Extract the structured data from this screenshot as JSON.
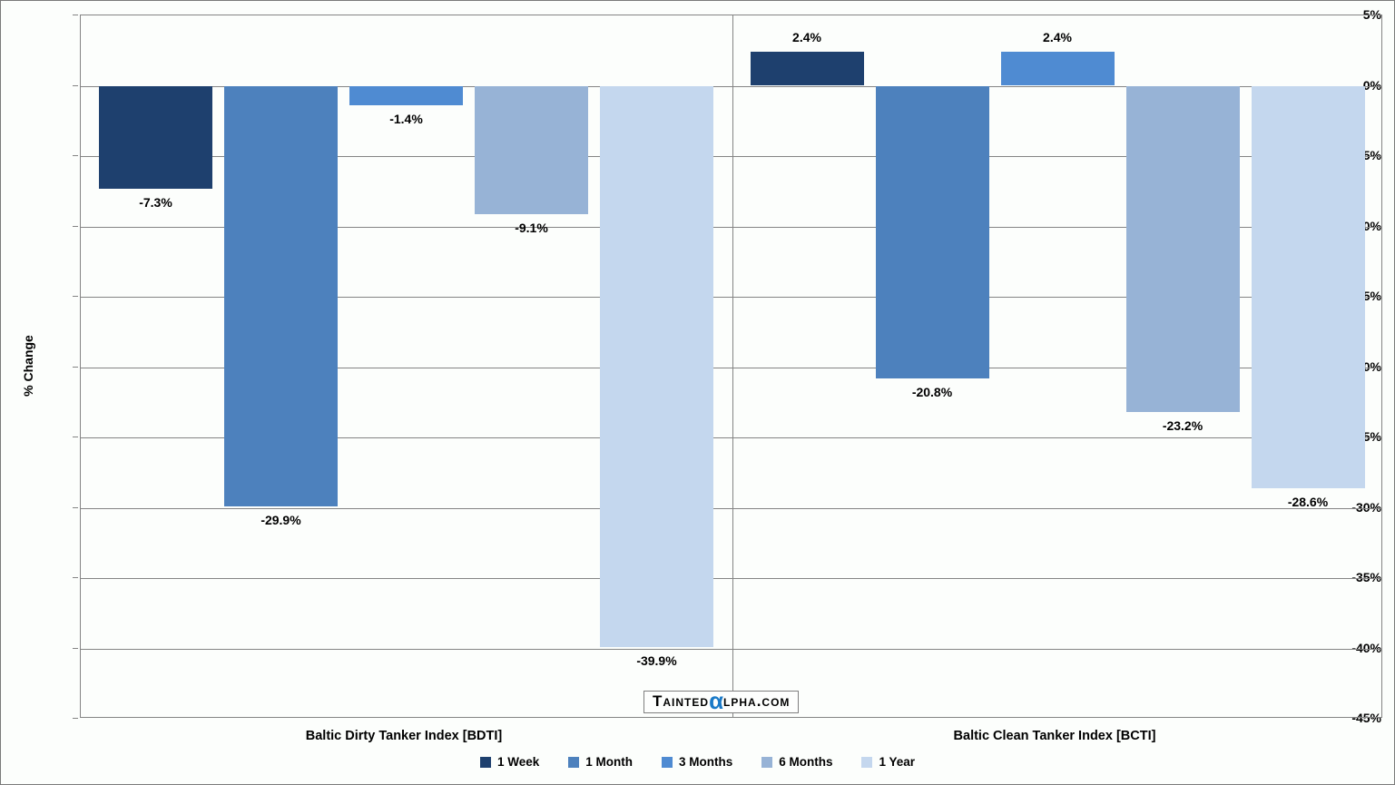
{
  "chart_data": {
    "type": "bar",
    "title": "",
    "ylabel": "% Change",
    "xlabel": "",
    "ylim": [
      -45,
      5
    ],
    "ytick_step": 5,
    "ytick_suffix": "%",
    "grid": true,
    "legend_position": "bottom",
    "categories": [
      "Baltic Dirty Tanker Index [BDTI]",
      "Baltic Clean Tanker Index [BCTI]"
    ],
    "series": [
      {
        "name": "1 Week",
        "color": "#1e406e",
        "values": [
          -7.3,
          2.4
        ]
      },
      {
        "name": "1 Month",
        "color": "#4d81bd",
        "values": [
          -29.9,
          -20.8
        ]
      },
      {
        "name": "3 Months",
        "color": "#4f8bd2",
        "values": [
          -1.4,
          2.4
        ]
      },
      {
        "name": "6 Months",
        "color": "#97b3d6",
        "values": [
          -9.1,
          -23.2
        ]
      },
      {
        "name": "1 Year",
        "color": "#c4d7ee",
        "values": [
          -39.9,
          -28.6
        ]
      }
    ],
    "data_labels": [
      [
        "-7.3%",
        "-29.9%",
        "-1.4%",
        "-9.1%",
        "-39.9%"
      ],
      [
        "2.4%",
        "-20.8%",
        "2.4%",
        "-23.2%",
        "-28.6%"
      ]
    ]
  },
  "watermark": {
    "pre": "Tainted",
    "alpha": "α",
    "post": "lpha.com",
    "alpha_color": "#1a7ac8"
  },
  "style": {
    "grid_color": "#848484",
    "background": "#fcfefc",
    "text_color": "#000000"
  }
}
